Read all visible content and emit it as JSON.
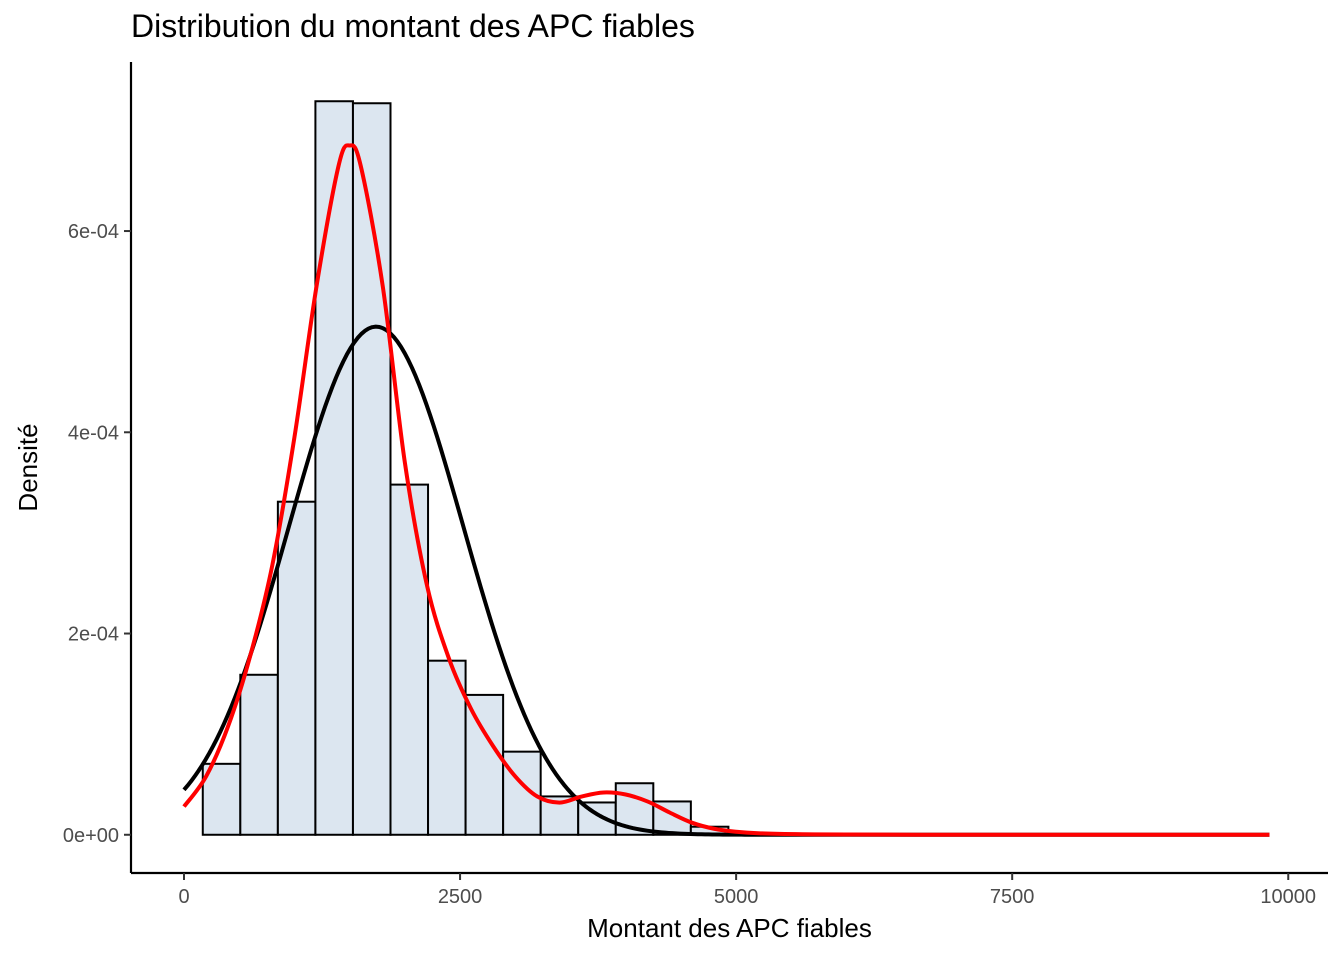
{
  "chart_data": {
    "type": "histogram",
    "title": "Distribution du montant des APC fiables",
    "xlabel": "Montant des APC fiables",
    "ylabel": "Densité",
    "xlim": [
      -480,
      10360
    ],
    "ylim": [
      -3.8e-05,
      0.000768
    ],
    "x_ticks": [
      0,
      2500,
      5000,
      7500,
      10000
    ],
    "x_tick_labels": [
      "0",
      "2500",
      "5000",
      "7500",
      "10000"
    ],
    "y_ticks": [
      0,
      0.0002,
      0.0004,
      0.0006
    ],
    "y_tick_labels": [
      "0e+00",
      "2e-04",
      "4e-04",
      "6e-04"
    ],
    "grid": false,
    "bins": [
      {
        "x0": 170,
        "x1": 510,
        "density": 7.05e-05
      },
      {
        "x0": 510,
        "x1": 850,
        "density": 0.000159
      },
      {
        "x0": 850,
        "x1": 1190,
        "density": 0.000331
      },
      {
        "x0": 1190,
        "x1": 1530,
        "density": 0.000729
      },
      {
        "x0": 1530,
        "x1": 1870,
        "density": 0.000727
      },
      {
        "x0": 1870,
        "x1": 2210,
        "density": 0.000348
      },
      {
        "x0": 2210,
        "x1": 2550,
        "density": 0.000173
      },
      {
        "x0": 2550,
        "x1": 2890,
        "density": 0.000139
      },
      {
        "x0": 2890,
        "x1": 3230,
        "density": 8.26e-05
      },
      {
        "x0": 3230,
        "x1": 3570,
        "density": 3.81e-05
      },
      {
        "x0": 3570,
        "x1": 3910,
        "density": 3.21e-05
      },
      {
        "x0": 3910,
        "x1": 4250,
        "density": 5.12e-05
      },
      {
        "x0": 4250,
        "x1": 4590,
        "density": 3.31e-05
      },
      {
        "x0": 4590,
        "x1": 4930,
        "density": 8e-06
      }
    ],
    "series": [
      {
        "kind": "normal-fit",
        "color": "#000000",
        "mean": 1740,
        "sd": 790,
        "x_range": [
          0,
          9830
        ]
      },
      {
        "kind": "kernel-density",
        "color": "#ff0000",
        "x_range": [
          0,
          9830
        ],
        "x": [
          0,
          200,
          400,
          600,
          800,
          1000,
          1200,
          1400,
          1500,
          1600,
          1800,
          2000,
          2200,
          2400,
          2600,
          2800,
          3000,
          3200,
          3400,
          3600,
          3800,
          4000,
          4200,
          4400,
          4600,
          4800,
          5000,
          5200,
          5600,
          6000,
          7000,
          8000,
          9000,
          9830
        ],
        "y": [
          2.8e-05,
          5.8e-05,
          0.000108,
          0.000178,
          0.000268,
          0.000395,
          0.000545,
          0.000665,
          0.000685,
          0.000665,
          0.000545,
          0.00037,
          0.000248,
          0.000175,
          0.000125,
          8.8e-05,
          5.8e-05,
          3.8e-05,
          3.2e-05,
          3.8e-05,
          4.2e-05,
          4e-05,
          3.3e-05,
          2.2e-05,
          1.2e-05,
          6e-06,
          3e-06,
          1.5e-06,
          5e-07,
          2e-07,
          0.0,
          0.0,
          0.0,
          0.0
        ]
      }
    ],
    "bar_fill": "#dce6f0",
    "bar_stroke": "#000000"
  }
}
